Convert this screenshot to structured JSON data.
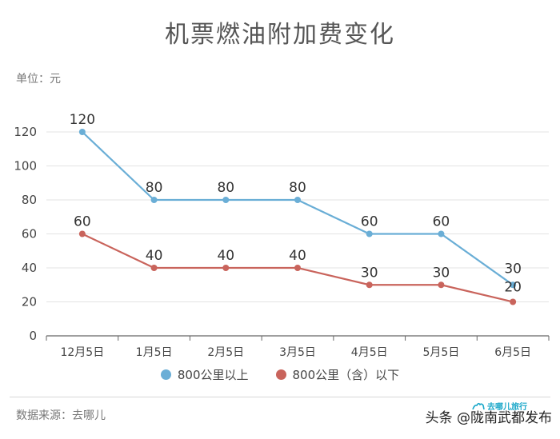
{
  "title": "机票燃油附加费变化",
  "unit_label": "单位：元",
  "source": "数据来源：去哪儿",
  "watermark_text": "头条 @陇南武都发布",
  "logo_text": "去哪儿旅行",
  "colors": {
    "series1": "#6aaed6",
    "series2": "#c9645c",
    "grid": "#e3e3e3",
    "axis": "#666666"
  },
  "chart_data": {
    "type": "line",
    "categories": [
      "12月5日",
      "1月5日",
      "2月5日",
      "3月5日",
      "4月5日",
      "5月5日",
      "6月5日"
    ],
    "series": [
      {
        "name": "800公里以上",
        "values": [
          120,
          80,
          80,
          80,
          60,
          60,
          30
        ]
      },
      {
        "name": "800公里（含）以下",
        "values": [
          60,
          40,
          40,
          40,
          30,
          30,
          20
        ]
      }
    ],
    "title": "机票燃油附加费变化",
    "ylabel": "单位：元",
    "ylim": [
      0,
      120
    ],
    "yticks": [
      0,
      20,
      40,
      60,
      80,
      100,
      120
    ],
    "grid": true,
    "legend": "bottom"
  }
}
